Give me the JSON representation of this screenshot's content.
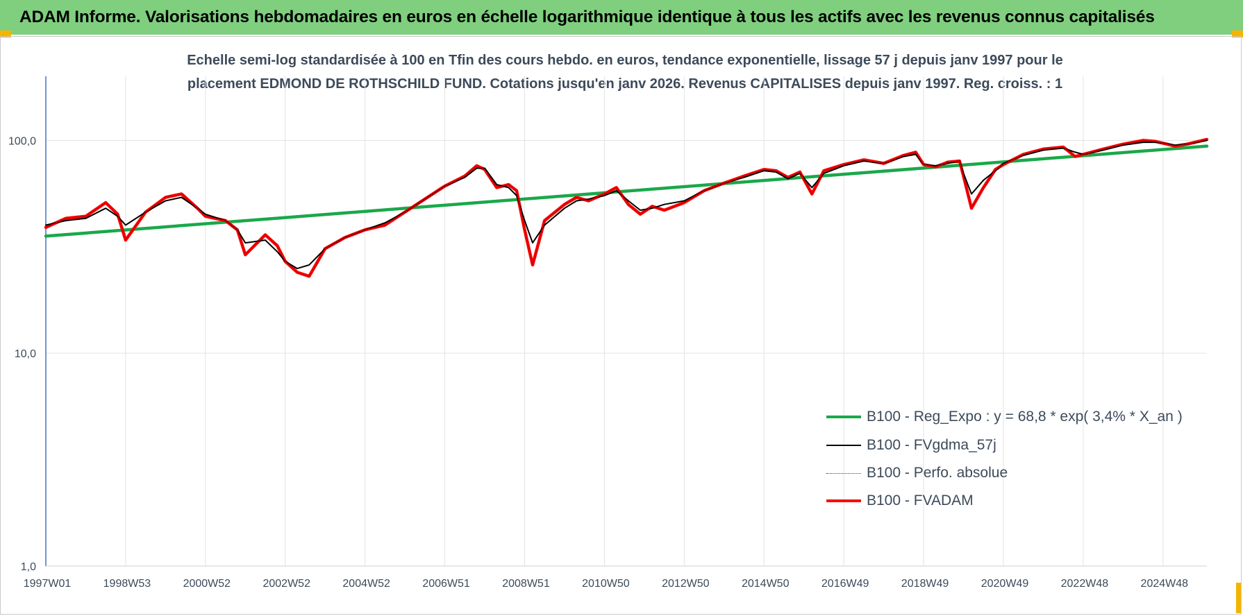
{
  "header": {
    "title": "ADAM Informe. Valorisations hebdomadaires en euros en échelle logarithmique identique à tous les actifs avec les revenus connus capitalisés"
  },
  "chart_data": {
    "type": "line",
    "title_line1": "Echelle semi-log standardisée à 100 en Tfin des cours hebdo. en euros, tendance exponentielle, lissage 57 j depuis janv 1997 pour le",
    "title_line2": "placement EDMOND DE ROTHSCHILD FUND. Cotations jusqu'en janv 2026. Revenus CAPITALISES depuis janv 1997. Reg. croiss. : 1",
    "y_scale": "log",
    "ylim": [
      1,
      200
    ],
    "xlim": [
      1997.0,
      2026.1
    ],
    "y_ticks": [
      {
        "value": 1,
        "label": "1,0"
      },
      {
        "value": 10,
        "label": "10,0"
      },
      {
        "value": 100,
        "label": "100,0"
      }
    ],
    "x_ticks": [
      {
        "year": 1997.0,
        "label": "1997W01"
      },
      {
        "year": 1999.0,
        "label": "1998W53"
      },
      {
        "year": 2001.0,
        "label": "2000W52"
      },
      {
        "year": 2003.0,
        "label": "2002W52"
      },
      {
        "year": 2005.0,
        "label": "2004W52"
      },
      {
        "year": 2007.0,
        "label": "2006W51"
      },
      {
        "year": 2009.0,
        "label": "2008W51"
      },
      {
        "year": 2011.0,
        "label": "2010W50"
      },
      {
        "year": 2013.0,
        "label": "2012W50"
      },
      {
        "year": 2015.0,
        "label": "2014W50"
      },
      {
        "year": 2017.0,
        "label": "2016W49"
      },
      {
        "year": 2019.0,
        "label": "2018W49"
      },
      {
        "year": 2021.0,
        "label": "2020W49"
      },
      {
        "year": 2023.0,
        "label": "2022W48"
      },
      {
        "year": 2025.0,
        "label": "2024W48"
      }
    ],
    "grid": true,
    "legend_position": "bottom-right",
    "series": [
      {
        "name": "B100 - Reg_Expo : y = 68,8 * exp( 3,4% *  X_an )",
        "color": "#1aa84a",
        "style": "thick",
        "x": [
          1997.0,
          2026.1
        ],
        "values": [
          35.5,
          94
        ]
      },
      {
        "name": "B100 - FVgdma_57j",
        "color": "#000000",
        "style": "thin",
        "x": [
          1997.0,
          1997.5,
          1998.0,
          1998.5,
          1998.8,
          1999.0,
          1999.5,
          2000.0,
          2000.4,
          2000.8,
          2001.0,
          2001.5,
          2001.8,
          2002.0,
          2002.5,
          2002.8,
          2003.0,
          2003.3,
          2003.6,
          2004.0,
          2004.5,
          2005.0,
          2005.5,
          2006.0,
          2006.5,
          2007.0,
          2007.5,
          2007.8,
          2008.0,
          2008.3,
          2008.6,
          2008.8,
          2009.0,
          2009.2,
          2009.5,
          2010.0,
          2010.3,
          2010.6,
          2011.0,
          2011.3,
          2011.6,
          2011.9,
          2012.2,
          2012.5,
          2013.0,
          2013.5,
          2014.0,
          2014.5,
          2015.0,
          2015.3,
          2015.6,
          2015.9,
          2016.2,
          2016.5,
          2017.0,
          2017.5,
          2018.0,
          2018.5,
          2018.8,
          2019.0,
          2019.3,
          2019.6,
          2019.9,
          2020.0,
          2020.2,
          2020.5,
          2020.8,
          2021.0,
          2021.5,
          2022.0,
          2022.5,
          2022.8,
          2023.0,
          2023.5,
          2024.0,
          2024.5,
          2024.8,
          2025.0,
          2025.3,
          2025.6,
          2026.1
        ],
        "values": [
          40,
          42,
          43,
          48,
          44,
          40,
          46,
          52,
          54,
          48,
          45,
          42,
          38,
          33,
          34,
          30,
          27,
          25,
          26,
          31,
          35,
          38,
          41,
          46,
          53,
          61,
          67,
          74,
          74,
          62,
          60,
          55,
          42,
          33,
          40,
          48,
          52,
          53,
          55,
          58,
          52,
          47,
          48,
          50,
          52,
          58,
          63,
          67,
          72,
          71,
          66,
          70,
          60,
          70,
          76,
          80,
          78,
          84,
          86,
          77,
          76,
          78,
          80,
          70,
          56,
          65,
          72,
          78,
          85,
          90,
          92,
          88,
          86,
          90,
          95,
          98,
          98,
          97,
          95,
          96,
          100
        ]
      },
      {
        "name": "B100 - Perfo. absolue",
        "color": "#cc0000",
        "style": "dotted",
        "x": [
          1997.0,
          1997.5,
          1998.0,
          1998.5,
          1998.8,
          1999.0,
          1999.5,
          2000.0,
          2000.4,
          2000.8,
          2001.0,
          2001.5,
          2001.8,
          2002.0,
          2002.5,
          2002.8,
          2003.0,
          2003.3,
          2003.6,
          2004.0,
          2004.5,
          2005.0,
          2005.5,
          2006.0,
          2006.5,
          2007.0,
          2007.5,
          2007.8,
          2008.0,
          2008.3,
          2008.6,
          2008.8,
          2009.0,
          2009.2,
          2009.5,
          2010.0,
          2010.3,
          2010.6,
          2011.0,
          2011.3,
          2011.6,
          2011.9,
          2012.2,
          2012.5,
          2013.0,
          2013.5,
          2014.0,
          2014.5,
          2015.0,
          2015.3,
          2015.6,
          2015.9,
          2016.2,
          2016.5,
          2017.0,
          2017.5,
          2018.0,
          2018.5,
          2018.8,
          2019.0,
          2019.3,
          2019.6,
          2019.9,
          2020.0,
          2020.2,
          2020.5,
          2020.8,
          2021.0,
          2021.5,
          2022.0,
          2022.5,
          2022.8,
          2023.0,
          2023.5,
          2024.0,
          2024.5,
          2024.8,
          2025.0,
          2025.3,
          2025.6,
          2026.1
        ],
        "values": [
          39,
          43,
          44,
          51,
          45,
          34,
          46,
          54,
          56,
          48,
          44,
          42,
          38,
          29,
          36,
          32,
          27,
          24,
          23,
          31,
          35,
          38,
          40,
          46,
          53,
          61,
          68,
          76,
          73,
          60,
          62,
          58,
          38,
          26,
          42,
          50,
          54,
          52,
          56,
          60,
          50,
          45,
          49,
          47,
          51,
          58,
          63,
          68,
          73,
          72,
          67,
          71,
          56,
          72,
          77,
          81,
          78,
          85,
          88,
          77,
          75,
          79,
          80,
          68,
          48,
          60,
          73,
          77,
          86,
          91,
          93,
          84,
          86,
          91,
          96,
          100,
          99,
          97,
          94,
          96,
          101
        ]
      },
      {
        "name": "B100 - FVADAM",
        "color": "#ff0000",
        "style": "thick",
        "x": [
          1997.0,
          1997.5,
          1998.0,
          1998.5,
          1998.8,
          1999.0,
          1999.5,
          2000.0,
          2000.4,
          2000.8,
          2001.0,
          2001.5,
          2001.8,
          2002.0,
          2002.5,
          2002.8,
          2003.0,
          2003.3,
          2003.6,
          2004.0,
          2004.5,
          2005.0,
          2005.5,
          2006.0,
          2006.5,
          2007.0,
          2007.5,
          2007.8,
          2008.0,
          2008.3,
          2008.6,
          2008.8,
          2009.0,
          2009.2,
          2009.5,
          2010.0,
          2010.3,
          2010.6,
          2011.0,
          2011.3,
          2011.6,
          2011.9,
          2012.2,
          2012.5,
          2013.0,
          2013.5,
          2014.0,
          2014.5,
          2015.0,
          2015.3,
          2015.6,
          2015.9,
          2016.2,
          2016.5,
          2017.0,
          2017.5,
          2018.0,
          2018.5,
          2018.8,
          2019.0,
          2019.3,
          2019.6,
          2019.9,
          2020.0,
          2020.2,
          2020.5,
          2020.8,
          2021.0,
          2021.5,
          2022.0,
          2022.5,
          2022.8,
          2023.0,
          2023.5,
          2024.0,
          2024.5,
          2024.8,
          2025.0,
          2025.3,
          2025.6,
          2026.1
        ],
        "values": [
          39,
          43,
          44,
          51,
          45,
          34,
          46,
          54,
          56,
          48,
          44,
          42,
          38,
          29,
          36,
          32,
          27,
          24,
          23,
          31,
          35,
          38,
          40,
          46,
          53,
          61,
          68,
          76,
          73,
          60,
          62,
          58,
          38,
          26,
          42,
          50,
          54,
          52,
          56,
          60,
          50,
          45,
          49,
          47,
          51,
          58,
          63,
          68,
          73,
          72,
          67,
          71,
          56,
          72,
          77,
          81,
          78,
          85,
          88,
          77,
          75,
          79,
          80,
          68,
          48,
          60,
          73,
          77,
          86,
          91,
          93,
          84,
          86,
          91,
          96,
          100,
          99,
          97,
          94,
          96,
          101
        ]
      }
    ],
    "colors": {
      "title_bar": "#7fcf7f",
      "corner": "#f5b400",
      "axis_text": "#3c4a5a",
      "grid": "#e3e3e3",
      "axis_line": "#4472c4"
    }
  }
}
